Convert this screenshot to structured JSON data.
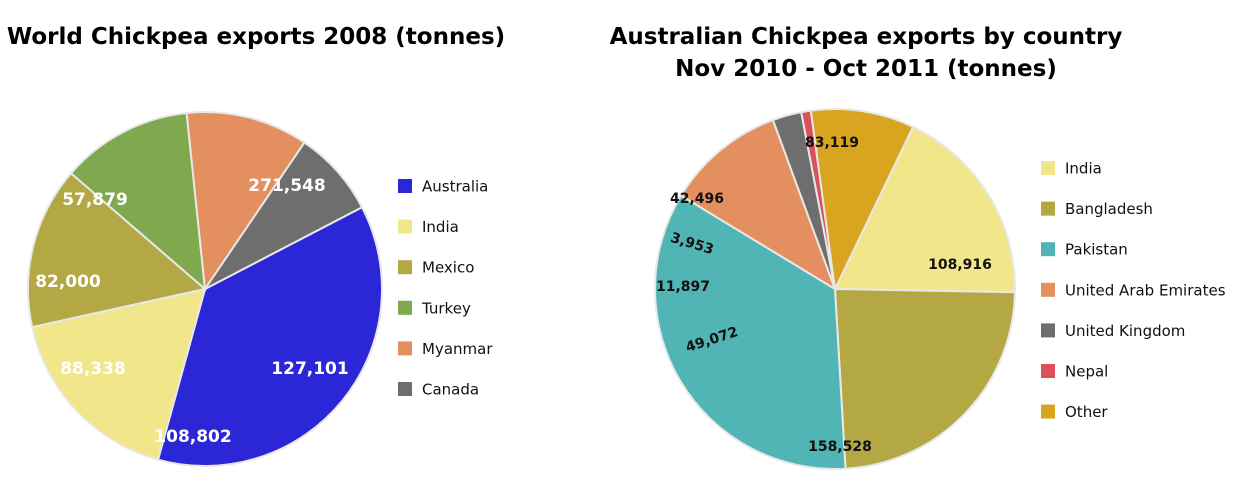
{
  "chart_data": [
    {
      "type": "pie",
      "title": "World Chickpea exports 2008 (tonnes)",
      "legend_position": "right",
      "slices": [
        {
          "label": "Australia",
          "value": 271548,
          "display": "271,548",
          "color": "#2b26d6",
          "label_color": "#ffffff"
        },
        {
          "label": "India",
          "value": 127101,
          "display": "127,101",
          "color": "#f2e68a",
          "label_color": "#ffffff"
        },
        {
          "label": "Mexico",
          "value": 108802,
          "display": "108,802",
          "color": "#b3a843",
          "label_color": "#ffffff"
        },
        {
          "label": "Turkey",
          "value": 88338,
          "display": "88,338",
          "color": "#7fa84f",
          "label_color": "#ffffff"
        },
        {
          "label": "Myanmar",
          "value": 82000,
          "display": "82,000",
          "color": "#e38f5f",
          "label_color": "#ffffff"
        },
        {
          "label": "Canada",
          "value": 57879,
          "display": "57,879",
          "color": "#6e6e6e",
          "label_color": "#ffffff"
        }
      ]
    },
    {
      "type": "pie",
      "title": "Australian Chickpea exports by country\nNov 2010 - Oct 2011 (tonnes)",
      "legend_position": "right",
      "slices": [
        {
          "label": "India",
          "value": 83119,
          "display": "83,119",
          "color": "#f2e68a",
          "label_color": "#111111"
        },
        {
          "label": "Bangladesh",
          "value": 108916,
          "display": "108,916",
          "color": "#b3a843",
          "label_color": "#111111"
        },
        {
          "label": "Pakistan",
          "value": 158528,
          "display": "158,528",
          "color": "#52b5b5",
          "label_color": "#111111"
        },
        {
          "label": "United Arab Emirates",
          "value": 49072,
          "display": "49,072",
          "color": "#e38f5f",
          "label_color": "#111111"
        },
        {
          "label": "United Kingdom",
          "value": 11897,
          "display": "11,897",
          "color": "#6e6e6e",
          "label_color": "#111111"
        },
        {
          "label": "Nepal",
          "value": 3953,
          "display": "3,953",
          "color": "#d9525a",
          "label_color": "#111111"
        },
        {
          "label": "Other",
          "value": 42496,
          "display": "42,496",
          "color": "#d9a520",
          "label_color": "#111111"
        }
      ]
    }
  ]
}
